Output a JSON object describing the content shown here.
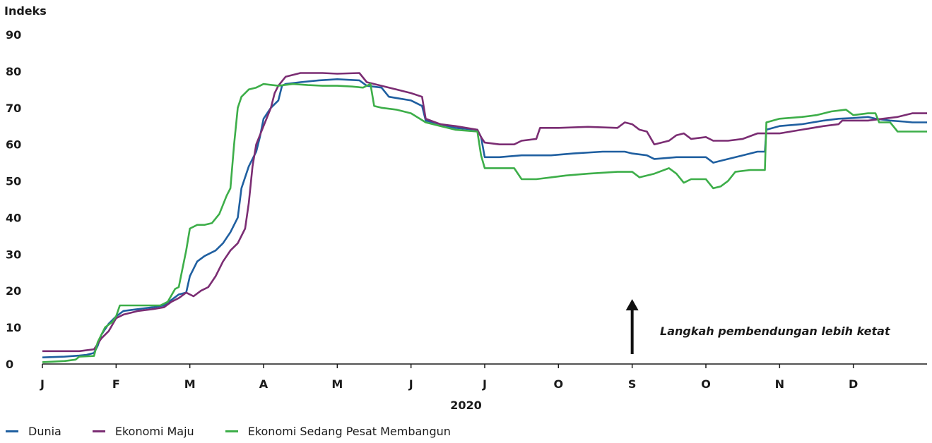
{
  "chart_data": {
    "type": "line",
    "ylabel": "Indeks",
    "xlabel": "2020",
    "ylim": [
      0,
      90
    ],
    "yticks": [
      0,
      10,
      20,
      30,
      40,
      50,
      60,
      70,
      80,
      90
    ],
    "xlim": [
      0,
      12
    ],
    "month_ticks": [
      "J",
      "F",
      "M",
      "A",
      "M",
      "J",
      "J",
      "O",
      "S",
      "O",
      "N",
      "D"
    ],
    "grid": false,
    "legend_position": "bottom-left",
    "annotation": {
      "text": "Langkah pembendungan lebih ketat",
      "arrow_x": 8.0
    },
    "series": [
      {
        "name": "Dunia",
        "color": "#1f5fa0",
        "points": [
          [
            0,
            1.8
          ],
          [
            0.3,
            2.0
          ],
          [
            0.5,
            2.3
          ],
          [
            0.6,
            2.5
          ],
          [
            0.7,
            3.0
          ],
          [
            0.75,
            5
          ],
          [
            0.8,
            8
          ],
          [
            0.9,
            11
          ],
          [
            1.0,
            13
          ],
          [
            1.1,
            14.5
          ],
          [
            1.3,
            15.0
          ],
          [
            1.5,
            15.5
          ],
          [
            1.65,
            16
          ],
          [
            1.75,
            17.5
          ],
          [
            1.85,
            19
          ],
          [
            1.95,
            19.5
          ],
          [
            2.0,
            24
          ],
          [
            2.05,
            26
          ],
          [
            2.1,
            28
          ],
          [
            2.2,
            29.5
          ],
          [
            2.35,
            31
          ],
          [
            2.45,
            33
          ],
          [
            2.55,
            36
          ],
          [
            2.65,
            40
          ],
          [
            2.7,
            48
          ],
          [
            2.8,
            54
          ],
          [
            2.9,
            58
          ],
          [
            2.95,
            62
          ],
          [
            3.0,
            67
          ],
          [
            3.1,
            70
          ],
          [
            3.2,
            72
          ],
          [
            3.25,
            76
          ],
          [
            3.3,
            76.5
          ],
          [
            3.5,
            77
          ],
          [
            3.75,
            77.5
          ],
          [
            4.0,
            77.8
          ],
          [
            4.3,
            77.5
          ],
          [
            4.4,
            76
          ],
          [
            4.6,
            75.5
          ],
          [
            4.7,
            73
          ],
          [
            4.85,
            72.5
          ],
          [
            5.0,
            72
          ],
          [
            5.15,
            70.5
          ],
          [
            5.2,
            66.5
          ],
          [
            5.4,
            65.5
          ],
          [
            5.6,
            64.5
          ],
          [
            5.9,
            64
          ],
          [
            5.95,
            62
          ],
          [
            6.0,
            56.5
          ],
          [
            6.2,
            56.5
          ],
          [
            6.5,
            57
          ],
          [
            6.9,
            57
          ],
          [
            7.2,
            57.5
          ],
          [
            7.6,
            58
          ],
          [
            7.9,
            58
          ],
          [
            8.0,
            57.5
          ],
          [
            8.2,
            57
          ],
          [
            8.3,
            56
          ],
          [
            8.6,
            56.5
          ],
          [
            8.9,
            56.5
          ],
          [
            9.0,
            56.5
          ],
          [
            9.1,
            55
          ],
          [
            9.3,
            56
          ],
          [
            9.5,
            57
          ],
          [
            9.7,
            58
          ],
          [
            9.8,
            58
          ],
          [
            9.82,
            64
          ],
          [
            10.0,
            65
          ],
          [
            10.3,
            65.5
          ],
          [
            10.6,
            66.5
          ],
          [
            10.8,
            67
          ],
          [
            11.0,
            67.2
          ],
          [
            11.2,
            67.5
          ],
          [
            11.3,
            67
          ],
          [
            11.5,
            66.5
          ],
          [
            11.7,
            66.2
          ],
          [
            11.8,
            66
          ],
          [
            12.0,
            66
          ]
        ]
      },
      {
        "name": "Ekonomi Maju",
        "color": "#7b2d73",
        "points": [
          [
            0,
            3.5
          ],
          [
            0.3,
            3.5
          ],
          [
            0.5,
            3.5
          ],
          [
            0.7,
            4.0
          ],
          [
            0.8,
            7
          ],
          [
            0.9,
            9
          ],
          [
            1.0,
            12.5
          ],
          [
            1.1,
            13.5
          ],
          [
            1.2,
            14
          ],
          [
            1.3,
            14.5
          ],
          [
            1.5,
            15
          ],
          [
            1.65,
            15.5
          ],
          [
            1.75,
            17
          ],
          [
            1.85,
            18
          ],
          [
            1.95,
            19.5
          ],
          [
            2.05,
            18.5
          ],
          [
            2.15,
            20
          ],
          [
            2.25,
            21
          ],
          [
            2.35,
            24
          ],
          [
            2.45,
            28
          ],
          [
            2.55,
            31
          ],
          [
            2.65,
            33
          ],
          [
            2.75,
            37
          ],
          [
            2.8,
            44
          ],
          [
            2.85,
            54
          ],
          [
            2.9,
            60
          ],
          [
            3.0,
            65
          ],
          [
            3.1,
            70
          ],
          [
            3.15,
            74
          ],
          [
            3.2,
            76
          ],
          [
            3.3,
            78.5
          ],
          [
            3.5,
            79.5
          ],
          [
            3.8,
            79.5
          ],
          [
            4.0,
            79.3
          ],
          [
            4.3,
            79.5
          ],
          [
            4.4,
            77
          ],
          [
            4.6,
            76
          ],
          [
            4.8,
            75
          ],
          [
            5.0,
            74
          ],
          [
            5.15,
            73
          ],
          [
            5.2,
            67
          ],
          [
            5.4,
            65.5
          ],
          [
            5.6,
            65
          ],
          [
            5.9,
            64
          ],
          [
            5.95,
            62
          ],
          [
            6.0,
            60.5
          ],
          [
            6.2,
            60
          ],
          [
            6.4,
            60
          ],
          [
            6.5,
            61
          ],
          [
            6.7,
            61.5
          ],
          [
            6.75,
            64.5
          ],
          [
            7.0,
            64.5
          ],
          [
            7.4,
            64.8
          ],
          [
            7.8,
            64.5
          ],
          [
            7.9,
            66
          ],
          [
            8.0,
            65.5
          ],
          [
            8.1,
            64
          ],
          [
            8.2,
            63.5
          ],
          [
            8.3,
            60
          ],
          [
            8.5,
            61
          ],
          [
            8.6,
            62.5
          ],
          [
            8.7,
            63
          ],
          [
            8.8,
            61.5
          ],
          [
            9.0,
            62
          ],
          [
            9.1,
            61
          ],
          [
            9.3,
            61
          ],
          [
            9.5,
            61.5
          ],
          [
            9.7,
            63
          ],
          [
            10.0,
            63
          ],
          [
            10.3,
            64
          ],
          [
            10.6,
            65
          ],
          [
            10.8,
            65.5
          ],
          [
            10.85,
            66.5
          ],
          [
            11.2,
            66.5
          ],
          [
            11.4,
            67
          ],
          [
            11.6,
            67.5
          ],
          [
            11.8,
            68.5
          ],
          [
            12.0,
            68.5
          ]
        ]
      },
      {
        "name": "Ekonomi Sedang Pesat Membangun",
        "color": "#3dae49",
        "points": [
          [
            0,
            0.5
          ],
          [
            0.3,
            0.8
          ],
          [
            0.45,
            1.2
          ],
          [
            0.5,
            2.0
          ],
          [
            0.7,
            2.2
          ],
          [
            0.75,
            6
          ],
          [
            0.85,
            10
          ],
          [
            0.95,
            11.5
          ],
          [
            1.0,
            13
          ],
          [
            1.05,
            16
          ],
          [
            1.3,
            16
          ],
          [
            1.6,
            16
          ],
          [
            1.7,
            17
          ],
          [
            1.8,
            20.5
          ],
          [
            1.85,
            21
          ],
          [
            1.9,
            26
          ],
          [
            1.95,
            31
          ],
          [
            2.0,
            37
          ],
          [
            2.1,
            38
          ],
          [
            2.2,
            38
          ],
          [
            2.3,
            38.5
          ],
          [
            2.4,
            41
          ],
          [
            2.5,
            46
          ],
          [
            2.55,
            48
          ],
          [
            2.6,
            60
          ],
          [
            2.65,
            70
          ],
          [
            2.7,
            73
          ],
          [
            2.8,
            75
          ],
          [
            2.9,
            75.5
          ],
          [
            3.0,
            76.5
          ],
          [
            3.2,
            76
          ],
          [
            3.4,
            76.5
          ],
          [
            3.6,
            76.2
          ],
          [
            3.8,
            76
          ],
          [
            4.0,
            76
          ],
          [
            4.2,
            75.8
          ],
          [
            4.35,
            75.5
          ],
          [
            4.45,
            76.5
          ],
          [
            4.5,
            70.5
          ],
          [
            4.6,
            70
          ],
          [
            4.8,
            69.5
          ],
          [
            5.0,
            68.5
          ],
          [
            5.2,
            66
          ],
          [
            5.4,
            65
          ],
          [
            5.6,
            64
          ],
          [
            5.9,
            63.5
          ],
          [
            5.95,
            57
          ],
          [
            6.0,
            53.5
          ],
          [
            6.2,
            53.5
          ],
          [
            6.4,
            53.5
          ],
          [
            6.5,
            50.5
          ],
          [
            6.7,
            50.5
          ],
          [
            6.9,
            51
          ],
          [
            7.1,
            51.5
          ],
          [
            7.4,
            52
          ],
          [
            7.8,
            52.5
          ],
          [
            8.0,
            52.5
          ],
          [
            8.1,
            51
          ],
          [
            8.3,
            52
          ],
          [
            8.5,
            53.5
          ],
          [
            8.6,
            52
          ],
          [
            8.7,
            49.5
          ],
          [
            8.8,
            50.5
          ],
          [
            9.0,
            50.5
          ],
          [
            9.1,
            48
          ],
          [
            9.2,
            48.5
          ],
          [
            9.3,
            50
          ],
          [
            9.4,
            52.5
          ],
          [
            9.6,
            53
          ],
          [
            9.8,
            53
          ],
          [
            9.82,
            66
          ],
          [
            10.0,
            67
          ],
          [
            10.3,
            67.5
          ],
          [
            10.5,
            68
          ],
          [
            10.7,
            69
          ],
          [
            10.9,
            69.5
          ],
          [
            11.0,
            68
          ],
          [
            11.2,
            68.5
          ],
          [
            11.3,
            68.5
          ],
          [
            11.35,
            66
          ],
          [
            11.5,
            66
          ],
          [
            11.6,
            63.5
          ],
          [
            12.0,
            63.5
          ]
        ]
      }
    ]
  }
}
